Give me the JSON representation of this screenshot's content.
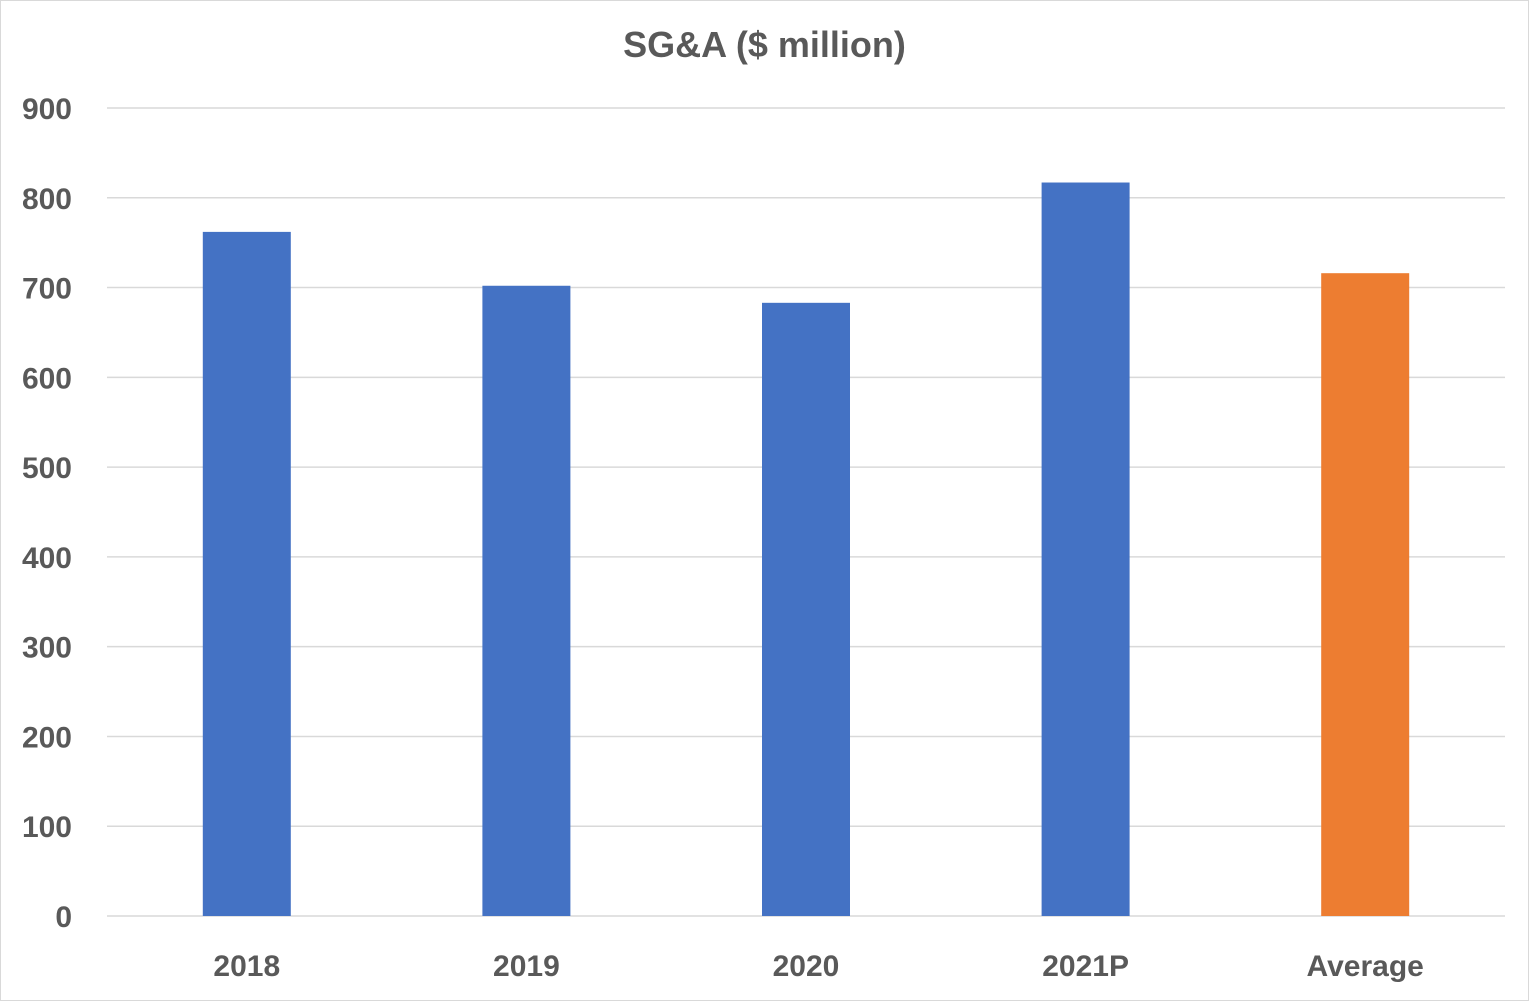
{
  "chart_data": {
    "type": "bar",
    "title": "SG&A ($ million)",
    "categories": [
      "2018",
      "2019",
      "2020",
      "2021P",
      "Average"
    ],
    "values": [
      762,
      702,
      683,
      817,
      716
    ],
    "bar_colors": [
      "#4472c4",
      "#4472c4",
      "#4472c4",
      "#4472c4",
      "#ed7d31"
    ],
    "ylim": [
      0,
      900
    ],
    "yticks": [
      0,
      100,
      200,
      300,
      400,
      500,
      600,
      700,
      800,
      900
    ],
    "grid": true,
    "xlabel": "",
    "ylabel": "",
    "colors": {
      "gridline": "#d9d9d9",
      "text": "#595959",
      "border": "#d9d9d9"
    }
  }
}
